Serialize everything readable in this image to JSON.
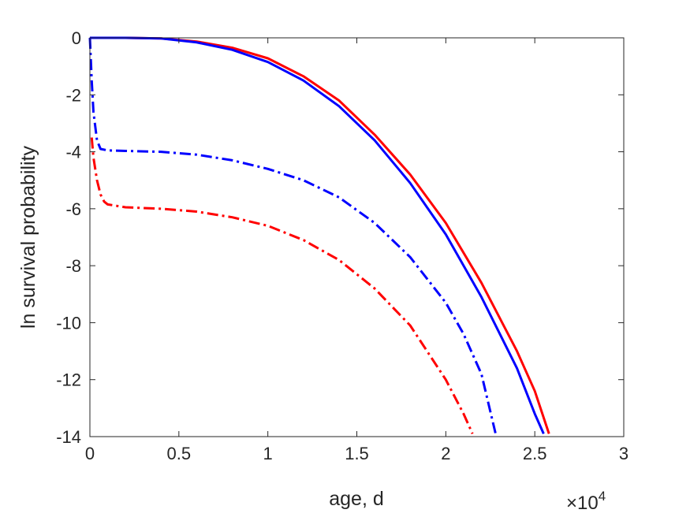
{
  "chart_data": {
    "type": "line",
    "xlabel": "age, d",
    "ylabel": "ln survival probability",
    "x_multiplier": {
      "base": "×10",
      "exponent": "4"
    },
    "xlim": [
      0,
      3
    ],
    "ylim": [
      -14,
      0
    ],
    "xticks": [
      "0",
      "0.5",
      "1",
      "1.5",
      "2",
      "2.5",
      "3"
    ],
    "yticks": [
      "0",
      "-2",
      "-4",
      "-6",
      "-8",
      "-10",
      "-12",
      "-14"
    ],
    "grid": false,
    "legend": "none",
    "series": [
      {
        "color": "#ff0000",
        "style": "solid",
        "x": [
          0.0,
          0.2,
          0.4,
          0.6,
          0.8,
          1.0,
          1.2,
          1.4,
          1.6,
          1.8,
          2.0,
          2.2,
          2.4,
          2.5,
          2.58
        ],
        "y": [
          0.0,
          0.0,
          -0.02,
          -0.13,
          -0.35,
          -0.72,
          -1.35,
          -2.2,
          -3.4,
          -4.8,
          -6.5,
          -8.6,
          -11.0,
          -12.4,
          -13.9
        ]
      },
      {
        "color": "#0000ff",
        "style": "solid",
        "x": [
          0.0,
          0.2,
          0.4,
          0.6,
          0.8,
          1.0,
          1.2,
          1.4,
          1.6,
          1.8,
          2.0,
          2.2,
          2.4,
          2.5,
          2.55
        ],
        "y": [
          0.0,
          0.0,
          -0.02,
          -0.16,
          -0.42,
          -0.85,
          -1.5,
          -2.4,
          -3.6,
          -5.1,
          -6.9,
          -9.1,
          -11.6,
          -13.2,
          -13.9
        ]
      },
      {
        "color": "#0000ff",
        "style": "dashdot",
        "x": [
          0.0,
          0.01,
          0.02,
          0.04,
          0.06,
          0.1,
          0.2,
          0.4,
          0.6,
          0.8,
          1.0,
          1.2,
          1.4,
          1.6,
          1.8,
          2.0,
          2.1,
          2.2,
          2.28
        ],
        "y": [
          0.0,
          -1.5,
          -2.6,
          -3.6,
          -3.9,
          -3.95,
          -3.97,
          -4.0,
          -4.1,
          -4.3,
          -4.6,
          -5.0,
          -5.6,
          -6.5,
          -7.7,
          -9.3,
          -10.4,
          -11.8,
          -13.9
        ]
      },
      {
        "color": "#ff0000",
        "style": "dashdot",
        "x": [
          0.01,
          0.02,
          0.04,
          0.06,
          0.08,
          0.1,
          0.15,
          0.2,
          0.4,
          0.6,
          0.8,
          1.0,
          1.2,
          1.4,
          1.6,
          1.8,
          2.0,
          2.1,
          2.15
        ],
        "y": [
          -3.5,
          -4.2,
          -5.0,
          -5.5,
          -5.75,
          -5.85,
          -5.9,
          -5.95,
          -6.0,
          -6.1,
          -6.3,
          -6.6,
          -7.1,
          -7.8,
          -8.8,
          -10.1,
          -12.0,
          -13.2,
          -13.9
        ]
      }
    ]
  }
}
